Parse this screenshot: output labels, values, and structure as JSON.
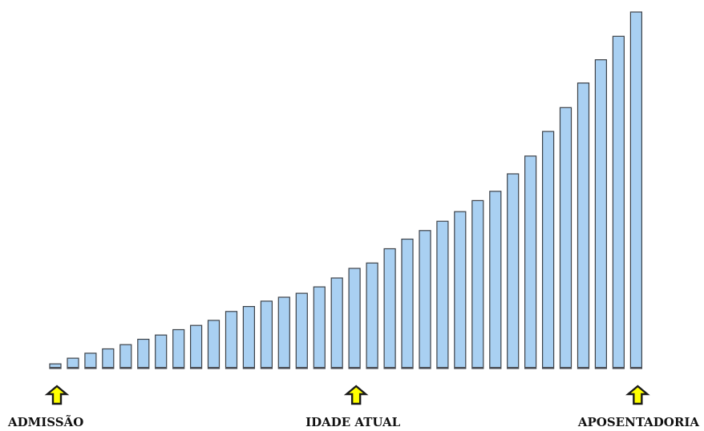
{
  "chart_data": {
    "type": "bar",
    "title": "",
    "xlabel": "",
    "ylabel": "",
    "ylim": [
      0,
      100
    ],
    "grid": false,
    "legend": "none",
    "bar_color": "#a9d0f2",
    "bar_outline_color": "#3c4148",
    "marker_color": "#ffff00",
    "values": [
      1.3,
      2.9,
      4.3,
      5.5,
      6.7,
      8.2,
      9.4,
      10.9,
      12.1,
      13.5,
      16.0,
      17.4,
      18.9,
      20.0,
      21.1,
      22.9,
      25.4,
      28.1,
      29.6,
      33.6,
      36.3,
      38.7,
      41.3,
      44.0,
      47.1,
      49.7,
      54.6,
      59.6,
      66.5,
      73.2,
      80.1,
      86.6,
      93.2,
      100.0
    ],
    "markers": [
      {
        "label": "ADMISSÃO",
        "bar_index": 0
      },
      {
        "label": "IDADE ATUAL",
        "bar_index": 17
      },
      {
        "label": "APOSENTADORIA",
        "bar_index": 33
      }
    ]
  }
}
